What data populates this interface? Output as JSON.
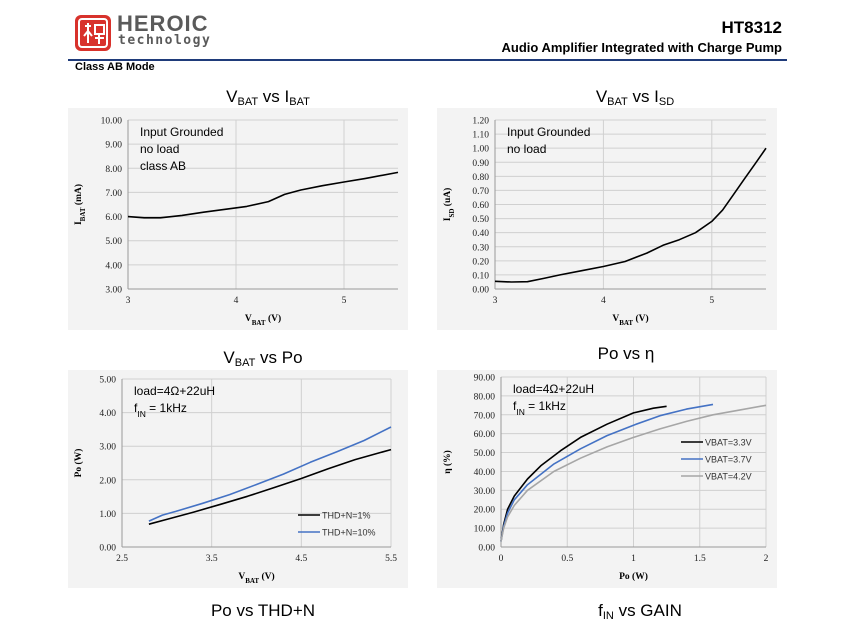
{
  "header": {
    "brand": "HEROIC",
    "brand_sub": "technology",
    "model": "HT8312",
    "subtitle": "Audio Amplifier Integrated with Charge Pump",
    "mode": "Class AB Mode",
    "accent_color": "#1f3b7a",
    "logo_color": "#d8322c"
  },
  "section_titles": {
    "bottom_left": "Po vs THD+N",
    "bottom_right": "f_IN vs GAIN"
  },
  "chart_data": [
    {
      "type": "line",
      "title": "V_BAT vs I_BAT",
      "xlabel": "V_BAT (V)",
      "ylabel": "I_BAT (mA)",
      "xlim": [
        3,
        5.5
      ],
      "ylim": [
        3,
        10
      ],
      "xticks": [
        "3",
        "4",
        "5"
      ],
      "yticks": [
        "3.00",
        "4.00",
        "5.00",
        "6.00",
        "7.00",
        "8.00",
        "9.00",
        "10.00"
      ],
      "grid": true,
      "annotation": [
        "Input Grounded",
        "no load",
        "class AB"
      ],
      "series": [
        {
          "color": "#000000",
          "x": [
            3.0,
            3.15,
            3.3,
            3.5,
            3.7,
            3.9,
            4.1,
            4.3,
            4.45,
            4.6,
            4.8,
            5.0,
            5.2,
            5.5
          ],
          "y": [
            6.0,
            5.95,
            5.95,
            6.05,
            6.18,
            6.3,
            6.42,
            6.62,
            6.92,
            7.1,
            7.28,
            7.43,
            7.58,
            7.83
          ]
        }
      ]
    },
    {
      "type": "line",
      "title": "V_BAT vs I_SD",
      "xlabel": "V_BAT (V)",
      "ylabel": "I_SD (uA)",
      "xlim": [
        3,
        5.5
      ],
      "ylim": [
        0,
        1.2
      ],
      "xticks": [
        "3",
        "4",
        "5"
      ],
      "yticks": [
        "0.00",
        "0.10",
        "0.20",
        "0.30",
        "0.40",
        "0.50",
        "0.60",
        "0.70",
        "0.80",
        "0.90",
        "1.00",
        "1.10",
        "1.20"
      ],
      "grid": true,
      "annotation": [
        "Input Grounded",
        "no load"
      ],
      "series": [
        {
          "color": "#000000",
          "x": [
            3.0,
            3.15,
            3.3,
            3.45,
            3.6,
            3.8,
            4.0,
            4.2,
            4.4,
            4.55,
            4.7,
            4.85,
            5.0,
            5.1,
            5.2,
            5.3,
            5.4,
            5.5
          ],
          "y": [
            0.055,
            0.05,
            0.052,
            0.075,
            0.1,
            0.13,
            0.16,
            0.195,
            0.255,
            0.31,
            0.35,
            0.4,
            0.48,
            0.56,
            0.67,
            0.78,
            0.89,
            1.0
          ]
        }
      ]
    },
    {
      "type": "line",
      "title": "V_BAT vs Po",
      "xlabel": "V_BAT (V)",
      "ylabel": "Po (W)",
      "xlim": [
        2.5,
        5.5
      ],
      "ylim": [
        0,
        5
      ],
      "xticks": [
        "2.5",
        "3.5",
        "4.5",
        "5.5"
      ],
      "yticks": [
        "0.00",
        "1.00",
        "2.00",
        "3.00",
        "4.00",
        "5.00"
      ],
      "grid": true,
      "annotation": [
        "load=4Ω+22uH",
        "f_IN = 1kHz"
      ],
      "legend": "bottom-right",
      "series": [
        {
          "name": "THD+N=1%",
          "color": "#000000",
          "x": [
            2.8,
            3.0,
            3.3,
            3.6,
            3.9,
            4.2,
            4.5,
            4.8,
            5.1,
            5.5
          ],
          "y": [
            0.68,
            0.82,
            1.04,
            1.27,
            1.51,
            1.77,
            2.04,
            2.33,
            2.6,
            2.9
          ]
        },
        {
          "name": "THD+N=10%",
          "color": "#4472c4",
          "x": [
            2.8,
            2.95,
            3.1,
            3.4,
            3.7,
            4.0,
            4.3,
            4.6,
            4.9,
            5.2,
            5.5
          ],
          "y": [
            0.77,
            0.95,
            1.06,
            1.3,
            1.56,
            1.86,
            2.17,
            2.52,
            2.84,
            3.17,
            3.57
          ]
        }
      ]
    },
    {
      "type": "line",
      "title": "Po vs η",
      "xlabel": "Po (W)",
      "ylabel": "η (%)",
      "xlim": [
        0,
        2
      ],
      "ylim": [
        0,
        90
      ],
      "xticks": [
        "0",
        "0.5",
        "1",
        "1.5",
        "2"
      ],
      "yticks": [
        "0.00",
        "10.00",
        "20.00",
        "30.00",
        "40.00",
        "50.00",
        "60.00",
        "70.00",
        "80.00",
        "90.00"
      ],
      "grid": true,
      "annotation": [
        "load=4Ω+22uH",
        "f_IN = 1kHz"
      ],
      "legend": "right",
      "series": [
        {
          "name": "VBAT=3.3V",
          "color": "#000000",
          "x": [
            0,
            0.02,
            0.05,
            0.1,
            0.2,
            0.3,
            0.45,
            0.6,
            0.8,
            1.0,
            1.15,
            1.25
          ],
          "y": [
            3,
            12,
            20,
            27,
            36,
            43,
            51,
            58,
            65,
            71,
            73.5,
            74.5
          ]
        },
        {
          "name": "VBAT=3.7V",
          "color": "#4472c4",
          "x": [
            0,
            0.02,
            0.05,
            0.1,
            0.2,
            0.4,
            0.6,
            0.8,
            1.0,
            1.2,
            1.4,
            1.6
          ],
          "y": [
            3,
            11,
            18,
            25,
            33,
            44,
            52,
            59,
            64.5,
            69.5,
            73,
            75.5
          ]
        },
        {
          "name": "VBAT=4.2V",
          "color": "#a6a6a6",
          "x": [
            0,
            0.02,
            0.05,
            0.1,
            0.2,
            0.4,
            0.6,
            0.8,
            1.0,
            1.2,
            1.4,
            1.6,
            1.8,
            2.0
          ],
          "y": [
            3,
            10,
            16,
            22,
            30,
            40,
            47,
            53,
            58,
            62.5,
            66.5,
            70,
            72.5,
            75
          ]
        }
      ]
    }
  ]
}
